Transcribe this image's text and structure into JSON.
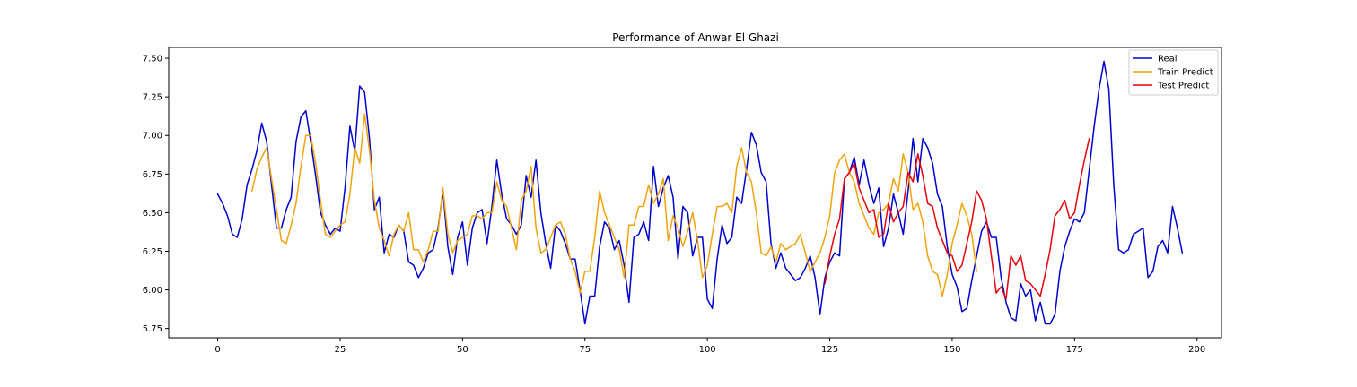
{
  "chart_data": {
    "type": "line",
    "title": "Performance of Anwar El Ghazi",
    "xlabel": "",
    "ylabel": "",
    "xlim": [
      -10,
      205
    ],
    "ylim": [
      5.69,
      7.57
    ],
    "xticks": [
      0,
      25,
      50,
      75,
      100,
      125,
      150,
      175,
      200
    ],
    "yticks": [
      5.75,
      6.0,
      6.25,
      6.5,
      6.75,
      7.0,
      7.25,
      7.5
    ],
    "ytick_labels": [
      "5.75",
      "6.00",
      "6.25",
      "6.50",
      "6.75",
      "7.00",
      "7.25",
      "7.50"
    ],
    "grid": false,
    "legend_position": "upper right",
    "series": [
      {
        "name": "Real",
        "color": "#0000cd",
        "x_start": 0,
        "values": [
          6.62,
          6.56,
          6.48,
          6.36,
          6.34,
          6.46,
          6.68,
          6.78,
          6.9,
          7.08,
          6.96,
          6.68,
          6.4,
          6.4,
          6.52,
          6.6,
          6.96,
          7.12,
          7.16,
          6.96,
          6.74,
          6.5,
          6.42,
          6.36,
          6.4,
          6.38,
          6.66,
          7.06,
          6.9,
          7.32,
          7.28,
          6.98,
          6.52,
          6.6,
          6.24,
          6.36,
          6.34,
          6.42,
          6.38,
          6.18,
          6.16,
          6.08,
          6.14,
          6.24,
          6.26,
          6.4,
          6.64,
          6.28,
          6.1,
          6.34,
          6.44,
          6.16,
          6.4,
          6.5,
          6.52,
          6.3,
          6.54,
          6.84,
          6.62,
          6.46,
          6.42,
          6.36,
          6.42,
          6.74,
          6.6,
          6.84,
          6.5,
          6.3,
          6.14,
          6.42,
          6.38,
          6.3,
          6.2,
          6.2,
          6.0,
          5.78,
          5.96,
          5.96,
          6.28,
          6.44,
          6.4,
          6.26,
          6.32,
          6.16,
          5.92,
          6.34,
          6.36,
          6.44,
          6.32,
          6.8,
          6.54,
          6.66,
          6.74,
          6.6,
          6.2,
          6.54,
          6.5,
          6.22,
          6.34,
          6.34,
          5.94,
          5.88,
          6.2,
          6.42,
          6.3,
          6.34,
          6.6,
          6.56,
          6.78,
          7.02,
          6.94,
          6.76,
          6.7,
          6.3,
          6.14,
          6.24,
          6.14,
          6.1,
          6.06,
          6.08,
          6.14,
          6.22,
          6.08,
          5.84,
          6.08,
          6.18,
          6.24,
          6.22,
          6.72,
          6.76,
          6.86,
          6.68,
          6.84,
          6.68,
          6.56,
          6.66,
          6.28,
          6.4,
          6.62,
          6.5,
          6.36,
          6.64,
          6.98,
          6.7,
          6.98,
          6.92,
          6.82,
          6.62,
          6.54,
          6.28,
          6.1,
          6.02,
          5.86,
          5.88,
          6.06,
          6.22,
          6.38,
          6.44,
          6.34,
          6.34,
          6.08,
          5.92,
          5.82,
          5.8,
          6.04,
          5.96,
          6.0,
          5.8,
          5.92,
          5.78,
          5.78,
          5.84,
          6.12,
          6.28,
          6.38,
          6.46,
          6.44,
          6.5,
          6.78,
          7.06,
          7.3,
          7.48,
          7.3,
          6.68,
          6.26,
          6.24,
          6.26,
          6.36,
          6.38,
          6.4,
          6.08,
          6.12,
          6.28,
          6.32,
          6.24,
          6.54,
          6.4,
          6.24
        ]
      },
      {
        "name": "Train Predict",
        "color": "#f0a30a",
        "x_start": 7,
        "values": [
          6.64,
          6.78,
          6.86,
          6.92,
          6.72,
          6.52,
          6.32,
          6.3,
          6.42,
          6.56,
          6.8,
          7.0,
          7.0,
          6.82,
          6.58,
          6.36,
          6.34,
          6.38,
          6.42,
          6.44,
          6.62,
          6.92,
          6.82,
          7.14,
          6.9,
          6.58,
          6.4,
          6.32,
          6.22,
          6.36,
          6.42,
          6.38,
          6.5,
          6.26,
          6.26,
          6.18,
          6.26,
          6.38,
          6.38,
          6.66,
          6.36,
          6.24,
          6.32,
          6.34,
          6.36,
          6.48,
          6.48,
          6.46,
          6.5,
          6.5,
          6.7,
          6.58,
          6.54,
          6.4,
          6.26,
          6.58,
          6.64,
          6.8,
          6.4,
          6.24,
          6.26,
          6.34,
          6.42,
          6.44,
          6.36,
          6.2,
          6.12,
          5.98,
          6.12,
          6.12,
          6.34,
          6.64,
          6.5,
          6.42,
          6.34,
          6.26,
          6.08,
          6.42,
          6.42,
          6.54,
          6.54,
          6.68,
          6.56,
          6.62,
          6.72,
          6.32,
          6.48,
          6.4,
          6.28,
          6.38,
          6.5,
          6.32,
          6.08,
          6.16,
          6.36,
          6.54,
          6.54,
          6.56,
          6.5,
          6.8,
          6.92,
          6.76,
          6.7,
          6.5,
          6.24,
          6.22,
          6.28,
          6.18,
          6.3,
          6.26,
          6.28,
          6.3,
          6.36,
          6.24,
          6.12,
          6.18,
          6.24,
          6.34,
          6.48,
          6.76,
          6.84,
          6.88,
          6.76,
          6.7,
          6.56,
          6.48,
          6.4,
          6.36,
          6.5,
          6.52,
          6.56,
          6.72,
          6.64,
          6.88,
          6.76,
          6.52,
          6.56,
          6.44,
          6.22,
          6.12,
          6.1,
          5.96,
          6.1,
          6.3,
          6.42,
          6.56,
          6.48,
          6.36,
          6.12
        ]
      },
      {
        "name": "Test Predict",
        "color": "#e8000b",
        "x_start": 124,
        "values": [
          6.04,
          6.22,
          6.36,
          6.46,
          6.72,
          6.76,
          6.82,
          6.66,
          6.58,
          6.5,
          6.52,
          6.34,
          6.36,
          6.56,
          6.44,
          6.5,
          6.54,
          6.76,
          6.7,
          6.88,
          6.74,
          6.56,
          6.54,
          6.4,
          6.32,
          6.24,
          6.22,
          6.12,
          6.16,
          6.3,
          6.44,
          6.64,
          6.58,
          6.46,
          6.22,
          5.98,
          6.02,
          5.94,
          6.22,
          6.16,
          6.22,
          6.06,
          6.04,
          6.0,
          5.96,
          6.1,
          6.26,
          6.48,
          6.52,
          6.58,
          6.46,
          6.5,
          6.68,
          6.84,
          6.98
        ]
      }
    ]
  }
}
